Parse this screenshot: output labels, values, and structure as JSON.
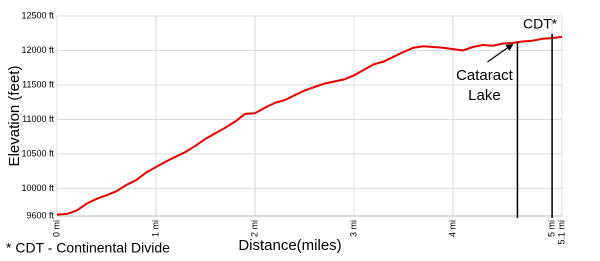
{
  "chart_data": {
    "type": "line",
    "x_label": "Distance(miles)",
    "y_label": "Elevation (feet)",
    "footnote": "* CDT - Continental Divide",
    "xlim": [
      0,
      5.1
    ],
    "xticks": [
      {
        "value": 0,
        "label": "0 mi"
      },
      {
        "value": 1,
        "label": "1 mi"
      },
      {
        "value": 2,
        "label": "2 mi"
      },
      {
        "value": 3,
        "label": "3 mi"
      },
      {
        "value": 4,
        "label": "4 mi"
      },
      {
        "value": 5,
        "label": "5 mi"
      },
      {
        "value": 5.1,
        "label": "5.1 mi"
      }
    ],
    "ylim": [
      9600,
      12500
    ],
    "yticks": [
      {
        "value": 9600,
        "label": "9600 ft"
      },
      {
        "value": 10000,
        "label": "10000 ft"
      },
      {
        "value": 10500,
        "label": "10500 ft"
      },
      {
        "value": 11000,
        "label": "11000 ft"
      },
      {
        "value": 11500,
        "label": "11500 ft"
      },
      {
        "value": 12000,
        "label": "12000 ft"
      },
      {
        "value": 12500,
        "label": "12500 ft"
      }
    ],
    "grid": true,
    "color": "#e00000",
    "x": [
      0,
      0.1,
      0.2,
      0.3,
      0.4,
      0.5,
      0.6,
      0.7,
      0.8,
      0.9,
      1.0,
      1.1,
      1.2,
      1.3,
      1.4,
      1.5,
      1.6,
      1.7,
      1.8,
      1.9,
      2.0,
      2.1,
      2.2,
      2.3,
      2.4,
      2.5,
      2.6,
      2.7,
      2.8,
      2.9,
      3.0,
      3.1,
      3.2,
      3.3,
      3.4,
      3.5,
      3.6,
      3.7,
      3.8,
      3.9,
      4.0,
      4.1,
      4.2,
      4.3,
      4.4,
      4.5,
      4.6,
      4.7,
      4.8,
      4.9,
      5.0,
      5.1
    ],
    "values": [
      9620,
      9630,
      9680,
      9780,
      9850,
      9900,
      9960,
      10050,
      10120,
      10230,
      10310,
      10390,
      10460,
      10530,
      10620,
      10720,
      10800,
      10880,
      10970,
      11080,
      11090,
      11170,
      11240,
      11280,
      11350,
      11420,
      11470,
      11520,
      11550,
      11580,
      11640,
      11720,
      11800,
      11840,
      11910,
      11980,
      12040,
      12060,
      12050,
      12040,
      12020,
      12000,
      12050,
      12080,
      12070,
      12100,
      12110,
      12130,
      12140,
      12170,
      12180,
      12200
    ],
    "annotations": [
      {
        "lines": [
          "Cataract",
          "Lake"
        ],
        "x": 4.65
      },
      {
        "lines": [
          "CDT*"
        ],
        "x": 5.0
      }
    ]
  }
}
